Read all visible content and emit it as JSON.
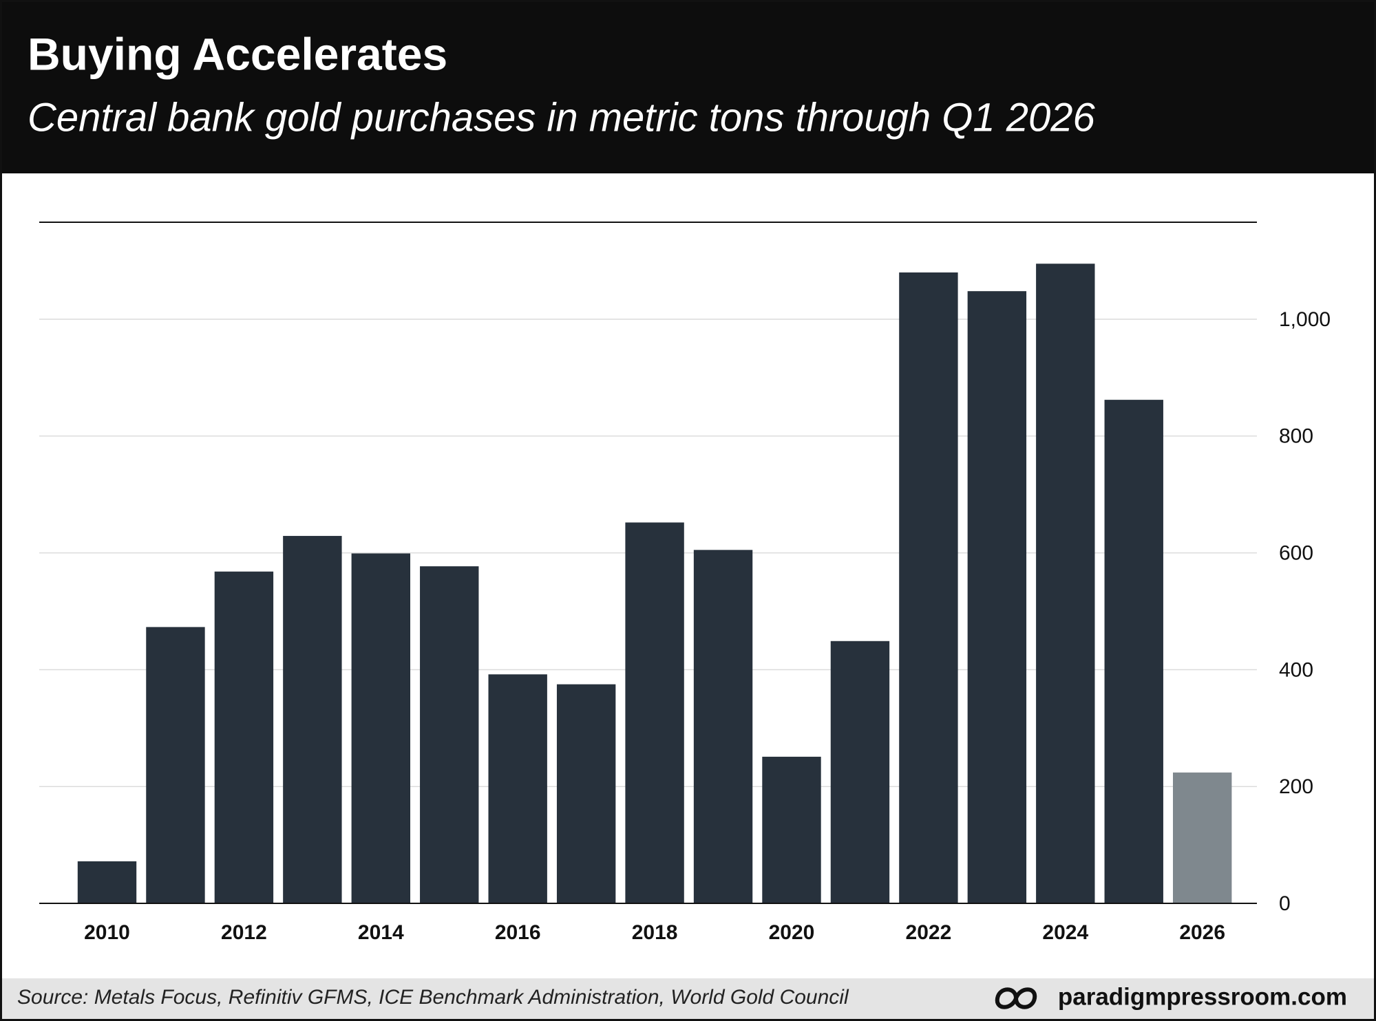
{
  "chart_data": {
    "type": "bar",
    "title": "Buying Accelerates",
    "subtitle": "Central bank gold purchases in metric tons through Q1 2026",
    "categories": [
      "2010",
      null,
      "2012",
      null,
      "2014",
      null,
      "2016",
      null,
      "2018",
      null,
      "2020",
      null,
      "2022",
      null,
      "2024",
      null,
      "2026"
    ],
    "values": [
      72,
      473,
      568,
      629,
      599,
      577,
      392,
      375,
      652,
      605,
      251,
      449,
      1080,
      1048,
      1095,
      862,
      224
    ],
    "colors": [
      "#27313c",
      "#27313c",
      "#27313c",
      "#27313c",
      "#27313c",
      "#27313c",
      "#27313c",
      "#27313c",
      "#27313c",
      "#27313c",
      "#27313c",
      "#27313c",
      "#27313c",
      "#27313c",
      "#27313c",
      "#27313c",
      "#7f888e"
    ],
    "ylim": [
      0,
      1166
    ],
    "yticks": [
      0,
      200,
      400,
      600,
      800,
      {
        "value": 1000,
        "label": "1,000"
      }
    ],
    "grid": true,
    "source": "Source: Metals Focus, Refinitiv GFMS, ICE Benchmark Administration, World Gold Council",
    "brand": "paradigmpressroom.com"
  }
}
